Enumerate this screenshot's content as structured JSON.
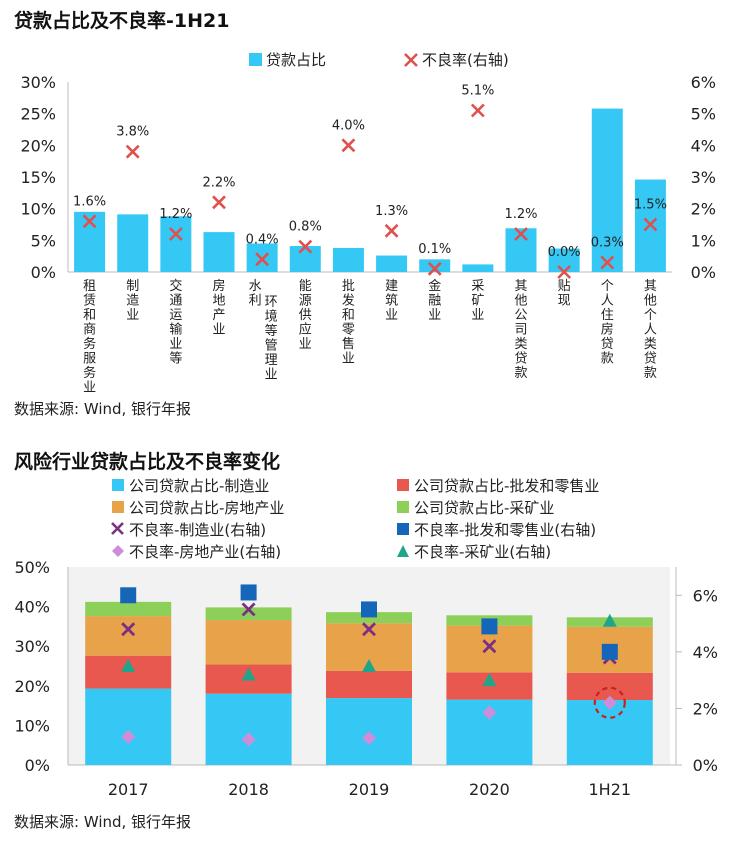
{
  "chart_data": [
    {
      "type": "bar",
      "title": "贷款占比及不良率-1H21",
      "source": "数据来源: Wind, 银行年报",
      "legend": [
        "贷款占比",
        "不良率(右轴)"
      ],
      "categories": [
        "租赁和商务服务业",
        "制造业",
        "交通运输业等",
        "房地产业",
        "水利 环境等管理业",
        "能源供应业",
        "批发和零售业",
        "建筑业",
        "金融业",
        "采矿业",
        "其他公司类贷款",
        "贴现",
        "个人住房贷款",
        "其他个人类贷款"
      ],
      "category_lines": [
        [
          "租赁和商务服务业"
        ],
        [
          "制造业"
        ],
        [
          "交通运输业等"
        ],
        [
          "房地产业"
        ],
        [
          "水利",
          "环境等管理业"
        ],
        [
          "能源供应业"
        ],
        [
          "批发和零售业"
        ],
        [
          "建筑业"
        ],
        [
          "金融业"
        ],
        [
          "采矿业"
        ],
        [
          "其他公司类贷款"
        ],
        [
          "贴现"
        ],
        [
          "个人住房贷款"
        ],
        [
          "其他个人类贷款"
        ]
      ],
      "series": [
        {
          "name": "贷款占比",
          "type": "bar",
          "axis": "left",
          "color": "#35c8f5",
          "values": [
            9.5,
            9.1,
            8.8,
            6.3,
            4.5,
            4.1,
            3.8,
            2.6,
            2.0,
            1.2,
            6.9,
            3.7,
            25.8,
            14.6
          ]
        },
        {
          "name": "不良率(右轴)",
          "type": "scatter",
          "marker": "x",
          "axis": "right",
          "color": "#e0504c",
          "values": [
            1.6,
            3.8,
            1.2,
            2.2,
            0.4,
            0.8,
            4.0,
            1.3,
            0.1,
            5.1,
            1.2,
            0.0,
            0.3,
            1.5
          ]
        }
      ],
      "data_labels": [
        "1.6%",
        "3.8%",
        "1.2%",
        "2.2%",
        "0.4%",
        "0.8%",
        "4.0%",
        "1.3%",
        "0.1%",
        "5.1%",
        "1.2%",
        "0.0%",
        "0.3%",
        "1.5%"
      ],
      "y_left": {
        "min": 0,
        "max": 30,
        "ticks": [
          "0%",
          "5%",
          "10%",
          "15%",
          "20%",
          "25%",
          "30%"
        ]
      },
      "y_right": {
        "min": 0,
        "max": 6,
        "ticks": [
          "0%",
          "1%",
          "2%",
          "3%",
          "4%",
          "5%",
          "6%"
        ]
      },
      "legend_position": "top",
      "grid": false
    },
    {
      "type": "stacked_bar",
      "title": "风险行业贷款占比及不良率变化",
      "source": "数据来源: Wind, 银行年报",
      "categories": [
        "2017",
        "2018",
        "2019",
        "2020",
        "1H21"
      ],
      "stacked_series": [
        {
          "name": "公司贷款占比-制造业",
          "color": "#35c8f5",
          "values": [
            19.3,
            18.0,
            16.9,
            16.5,
            16.4
          ]
        },
        {
          "name": "公司贷款占比-批发和零售业",
          "color": "#e8584e",
          "values": [
            8.3,
            7.4,
            6.9,
            6.9,
            6.9
          ]
        },
        {
          "name": "公司贷款占比-房地产业",
          "color": "#e8a24a",
          "values": [
            10.0,
            11.2,
            12.0,
            11.8,
            11.6
          ]
        },
        {
          "name": "公司贷款占比-采矿业",
          "color": "#8cd05a",
          "values": [
            3.6,
            3.2,
            2.8,
            2.6,
            2.4
          ]
        }
      ],
      "marker_series": [
        {
          "name": "不良率-制造业(右轴)",
          "marker": "x",
          "color": "#7b2e86",
          "values": [
            4.8,
            5.5,
            4.8,
            4.2,
            3.8
          ]
        },
        {
          "name": "不良率-批发和零售业(右轴)",
          "marker": "square",
          "color": "#1565b8",
          "values": [
            6.0,
            6.1,
            5.5,
            4.9,
            4.0
          ]
        },
        {
          "name": "不良率-房地产业(右轴)",
          "marker": "diamond",
          "color": "#cd8ddb",
          "values": [
            1.0,
            0.9,
            0.95,
            1.85,
            2.2
          ]
        },
        {
          "name": "不良率-采矿业(右轴)",
          "marker": "triangle",
          "color": "#1fa58a",
          "values": [
            3.5,
            3.2,
            3.5,
            3.0,
            5.1
          ]
        }
      ],
      "highlight": {
        "category": "1H21",
        "series": "不良率-房地产业(右轴)",
        "style": "dashed-circle",
        "color": "#cc1f1f"
      },
      "y_left": {
        "min": 0,
        "max": 50,
        "ticks": [
          "0%",
          "10%",
          "20%",
          "30%",
          "40%",
          "50%"
        ]
      },
      "y_right": {
        "min": 0,
        "max": 7,
        "ticks": [
          "0%",
          "2%",
          "4%",
          "6%"
        ]
      },
      "legend_position": "top",
      "grid": false,
      "plot_background": "#f2f2f2"
    }
  ]
}
